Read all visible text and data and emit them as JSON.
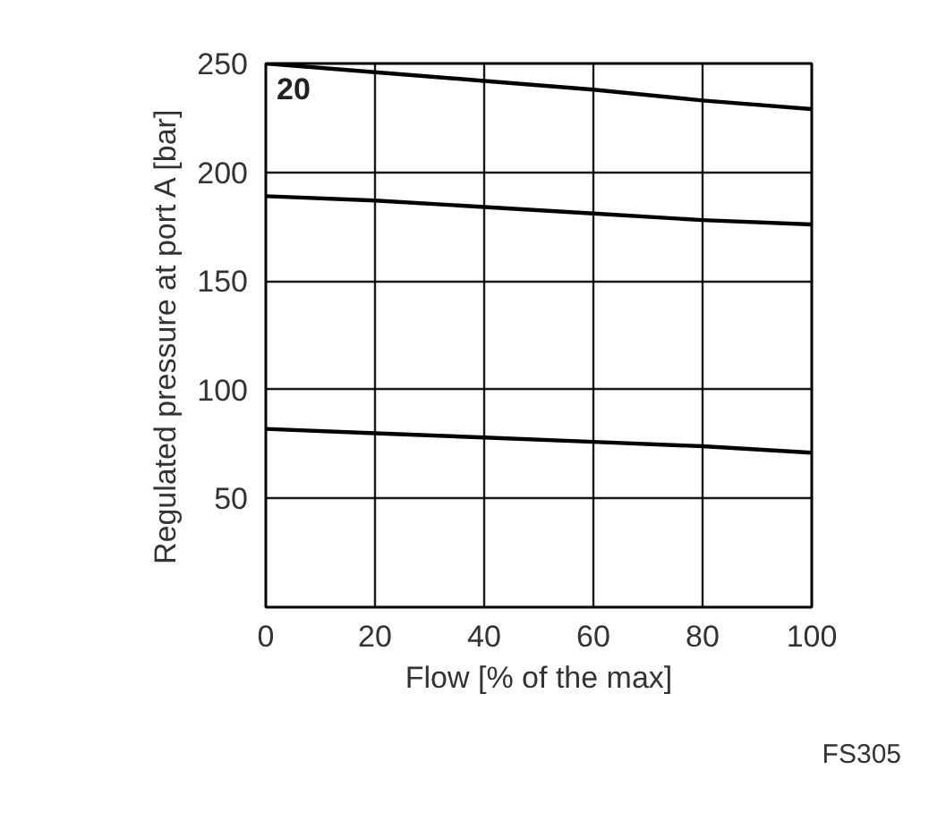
{
  "chart_data": {
    "type": "line",
    "x": [
      0,
      20,
      40,
      60,
      80,
      100
    ],
    "series": [
      {
        "color": "#000000",
        "values": [
          250,
          246,
          242,
          238,
          233,
          229
        ]
      },
      {
        "color": "#000000",
        "values": [
          189,
          187,
          184,
          181,
          178,
          176
        ]
      },
      {
        "color": "#000000",
        "values": [
          82,
          80,
          78,
          76,
          74,
          71
        ]
      }
    ],
    "xlabel": "Flow [% of the max]",
    "ylabel": "Regulated pressure at port A [bar]",
    "xlim": [
      0,
      100
    ],
    "ylim": [
      0,
      250
    ],
    "xticks": [
      0,
      20,
      40,
      60,
      80,
      100
    ],
    "yticks": [
      {
        "value": 0,
        "label": null
      },
      50,
      100,
      150,
      200,
      250
    ],
    "grid": true,
    "line_style": "solid",
    "marker": "none",
    "annotations": [
      "20",
      "FS305"
    ]
  }
}
